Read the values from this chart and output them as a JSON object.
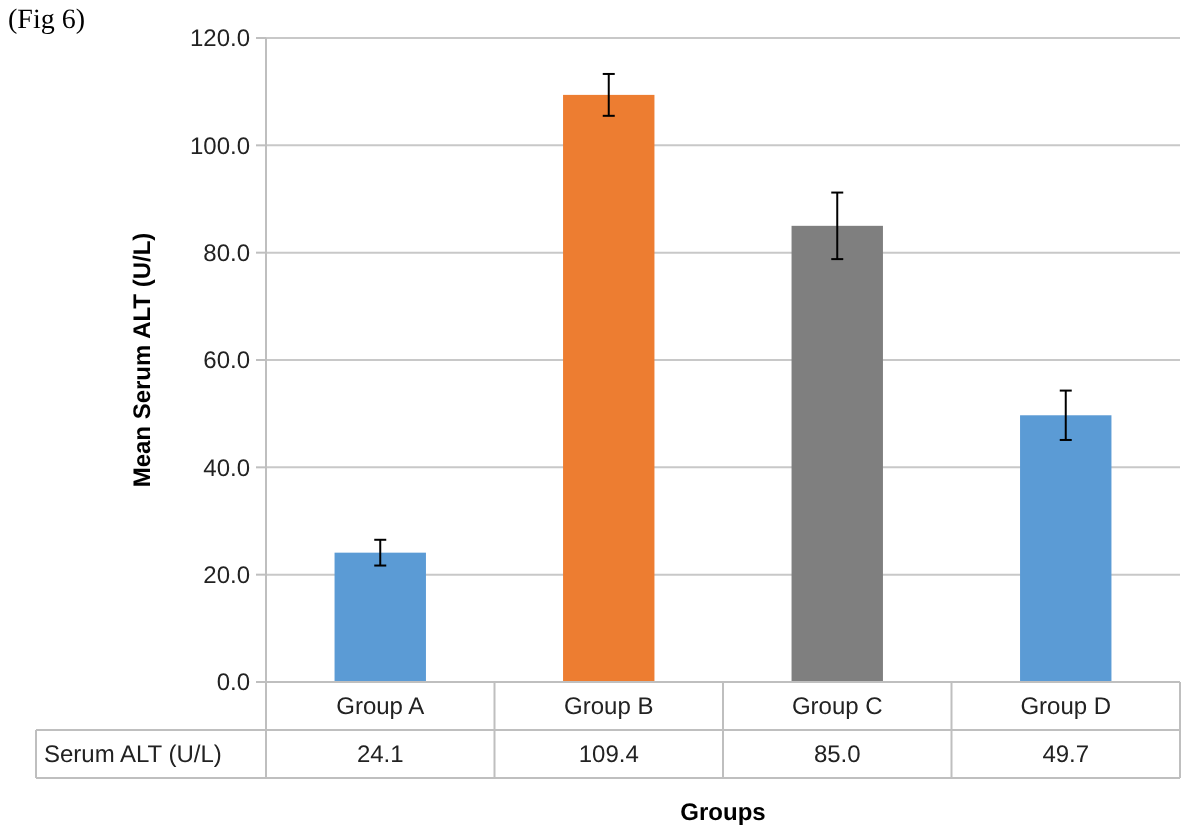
{
  "chart_data": {
    "type": "bar",
    "ylabel": "Mean Serum ALT (U/L)",
    "xlabel": "Groups",
    "annotations": [
      "(Fig 6)"
    ],
    "categories": [
      "Group A",
      "Group B",
      "Group C",
      "Group D"
    ],
    "series": [
      {
        "name": "Serum ALT (U/L)",
        "colors": [
          "#5b9bd5",
          "#ed7d31",
          "#7f7f7f",
          "#5b9bd5"
        ],
        "values": [
          24.1,
          109.4,
          85.0,
          49.7
        ],
        "value_labels": [
          "24.1",
          "109.4",
          "85.0",
          "49.7"
        ],
        "errors": [
          2.4,
          3.9,
          6.2,
          4.6
        ]
      }
    ],
    "ylim": [
      0,
      120
    ],
    "yticks": [
      {
        "value": 0,
        "label": "0.0"
      },
      {
        "value": 20,
        "label": "20.0"
      },
      {
        "value": 40,
        "label": "40.0"
      },
      {
        "value": 60,
        "label": "60.0"
      },
      {
        "value": 80,
        "label": "80.0"
      },
      {
        "value": 100,
        "label": "100.0"
      },
      {
        "value": 120,
        "label": "120.0"
      }
    ],
    "grid": "y"
  }
}
